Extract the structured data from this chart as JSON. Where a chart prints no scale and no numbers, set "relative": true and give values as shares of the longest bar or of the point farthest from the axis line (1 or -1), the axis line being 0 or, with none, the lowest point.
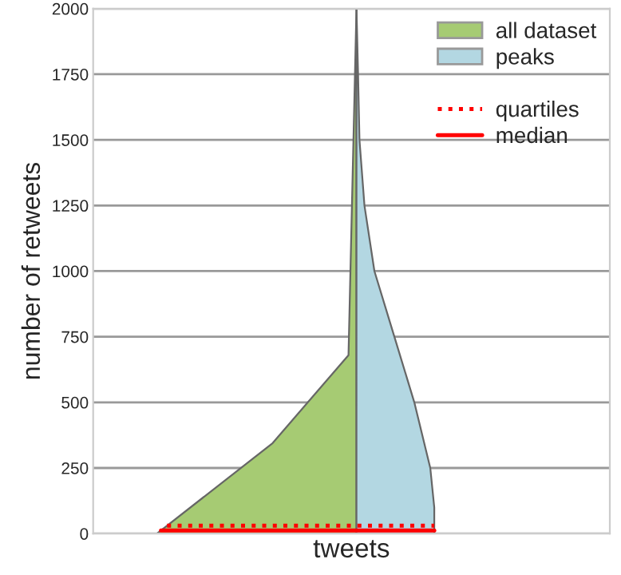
{
  "chart_data": {
    "type": "area",
    "orientation": "horizontal",
    "relative": true,
    "xlabel": "tweets",
    "ylabel": "number of retweets",
    "ylim": [
      0,
      2000
    ],
    "yticks": [
      0,
      250,
      500,
      750,
      1000,
      1250,
      1500,
      1750,
      2000
    ],
    "grid": "y",
    "legend": "top right",
    "series": [
      {
        "name": "all dataset",
        "color": "#a6cb73",
        "x": [
          0,
          345,
          680,
          2000
        ],
        "values": [
          -1,
          -0.42,
          -0.04,
          0
        ]
      },
      {
        "name": "peaks",
        "color": "#b3d7e2",
        "x": [
          0,
          100,
          250,
          500,
          750,
          1000,
          1250,
          1500,
          1750,
          2000
        ],
        "values": [
          0.39,
          0.39,
          0.37,
          0.29,
          0.19,
          0.09,
          0.04,
          0.015,
          0.008,
          0
        ]
      }
    ],
    "ref_lines": [
      {
        "axis": "y",
        "value": 30,
        "label": "quartiles",
        "color": "#ff0000",
        "line_style": "dotted"
      },
      {
        "axis": "y",
        "value": 12,
        "label": "median",
        "color": "#ff0000",
        "line_style": "solid"
      }
    ]
  }
}
